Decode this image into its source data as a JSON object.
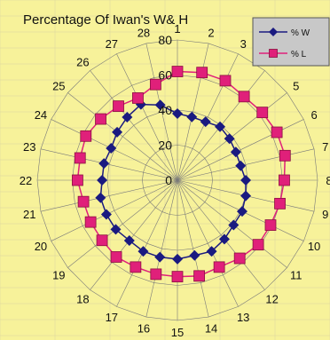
{
  "chart_data": {
    "type": "radar",
    "title": "Percentage Of Iwan's W& H",
    "categories": [
      "1",
      "2",
      "3",
      "4",
      "5",
      "6",
      "7",
      "8",
      "9",
      "10",
      "11",
      "12",
      "13",
      "14",
      "15",
      "16",
      "17",
      "18",
      "19",
      "20",
      "21",
      "22",
      "23",
      "24",
      "25",
      "26",
      "27",
      "28"
    ],
    "r_ticks": [
      "0",
      "20",
      "40",
      "60",
      "80"
    ],
    "rlim": [
      0,
      80
    ],
    "grid": true,
    "legend_position": "top-right",
    "series": [
      {
        "name": "% W",
        "color": "#1a1a80",
        "marker": "diamond",
        "values": [
          38,
          37,
          37,
          39,
          38,
          37,
          37,
          39,
          40,
          41,
          41,
          43,
          45,
          44,
          45,
          45,
          45,
          44,
          45,
          45,
          45,
          43,
          43,
          42,
          44,
          46,
          48,
          44
        ]
      },
      {
        "name": "% L",
        "color": "#e0207a",
        "marker": "square",
        "values": [
          62,
          63,
          63,
          61,
          62,
          63,
          63,
          61,
          60,
          59,
          59,
          57,
          55,
          56,
          55,
          55,
          55,
          56,
          55,
          55,
          55,
          57,
          57,
          58,
          56,
          54,
          52,
          56
        ]
      }
    ]
  }
}
